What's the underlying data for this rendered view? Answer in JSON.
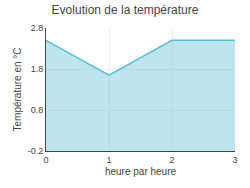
{
  "chart_data": {
    "type": "area",
    "title": "Evolution de la température",
    "xlabel": "heure par heure",
    "ylabel": "Température en °C",
    "x": [
      0,
      1,
      2,
      3
    ],
    "values": [
      2.5,
      1.65,
      2.5,
      2.5
    ],
    "color": "#5bbcd6",
    "xlim": [
      0,
      3
    ],
    "ylim": [
      -0.2,
      2.8
    ],
    "xticks": [
      0,
      1,
      2,
      3
    ],
    "yticks": [
      -0.2,
      0.8,
      1.8,
      2.8
    ],
    "grid": true
  }
}
